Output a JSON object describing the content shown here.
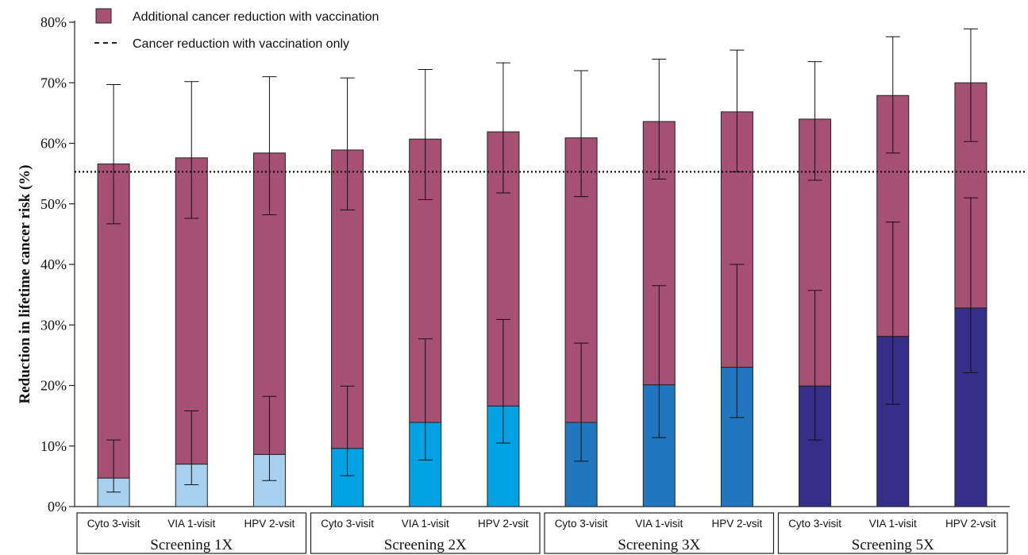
{
  "chart_data": {
    "type": "bar",
    "title": "",
    "xlabel": "",
    "ylabel": "Reduction in lifetime cancer risk (%)",
    "ylim": [
      0,
      80
    ],
    "yticks": [
      "0%",
      "10%",
      "20%",
      "30%",
      "40%",
      "50%",
      "60%",
      "70%",
      "80%"
    ],
    "reference_line": {
      "value": 55.3,
      "label": "Cancer reduction with vaccination only"
    },
    "legend": {
      "position": "top-left",
      "entries": [
        {
          "label": "Additional cancer reduction with vaccination",
          "color": "#A65073"
        },
        {
          "label": "Cancer reduction with vaccination only",
          "style": "dashed"
        }
      ]
    },
    "groups": [
      {
        "label": "Screening 1X",
        "color": "#A7D0EE",
        "bars": [
          {
            "label": "Cyto 3-visit",
            "base": 4.7,
            "base_err": [
              2.4,
              11.0
            ],
            "total": 56.6,
            "total_err": [
              46.7,
              69.7
            ]
          },
          {
            "label": "VIA 1-visit",
            "base": 7.0,
            "base_err": [
              3.6,
              15.8
            ],
            "total": 57.6,
            "total_err": [
              47.6,
              70.2
            ]
          },
          {
            "label": "HPV 2-vsit",
            "base": 8.6,
            "base_err": [
              4.3,
              18.2
            ],
            "total": 58.4,
            "total_err": [
              48.2,
              71.0
            ]
          }
        ]
      },
      {
        "label": "Screening 2X",
        "color": "#00A2E3",
        "bars": [
          {
            "label": "Cyto 3-visit",
            "base": 9.6,
            "base_err": [
              5.1,
              19.9
            ],
            "total": 58.9,
            "total_err": [
              49.0,
              70.8
            ]
          },
          {
            "label": "VIA 1-visit",
            "base": 13.9,
            "base_err": [
              7.7,
              27.7
            ],
            "total": 60.7,
            "total_err": [
              50.7,
              72.2
            ]
          },
          {
            "label": "HPV 2-vsit",
            "base": 16.6,
            "base_err": [
              10.5,
              30.9
            ],
            "total": 61.9,
            "total_err": [
              51.8,
              73.3
            ]
          }
        ]
      },
      {
        "label": "Screening 3X",
        "color": "#2176C0",
        "bars": [
          {
            "label": "Cyto 3-visit",
            "base": 13.9,
            "base_err": [
              7.5,
              27.0
            ],
            "total": 60.9,
            "total_err": [
              51.2,
              72.0
            ]
          },
          {
            "label": "VIA 1-visit",
            "base": 20.1,
            "base_err": [
              11.4,
              36.5
            ],
            "total": 63.6,
            "total_err": [
              54.1,
              73.9
            ]
          },
          {
            "label": "HPV 2-vsit",
            "base": 23.0,
            "base_err": [
              14.7,
              40.0
            ],
            "total": 65.2,
            "total_err": [
              55.3,
              75.4
            ]
          }
        ]
      },
      {
        "label": "Screening 5X",
        "color": "#362F8A",
        "bars": [
          {
            "label": "Cyto 3-visit",
            "base": 19.9,
            "base_err": [
              11.0,
              35.7
            ],
            "total": 64.0,
            "total_err": [
              53.9,
              73.5
            ]
          },
          {
            "label": "VIA 1-visit",
            "base": 28.1,
            "base_err": [
              16.9,
              47.0
            ],
            "total": 67.9,
            "total_err": [
              58.4,
              77.6
            ]
          },
          {
            "label": "HPV 2-vsit",
            "base": 32.8,
            "base_err": [
              22.1,
              51.0
            ],
            "total": 70.0,
            "total_err": [
              60.3,
              78.9
            ]
          }
        ]
      }
    ]
  }
}
